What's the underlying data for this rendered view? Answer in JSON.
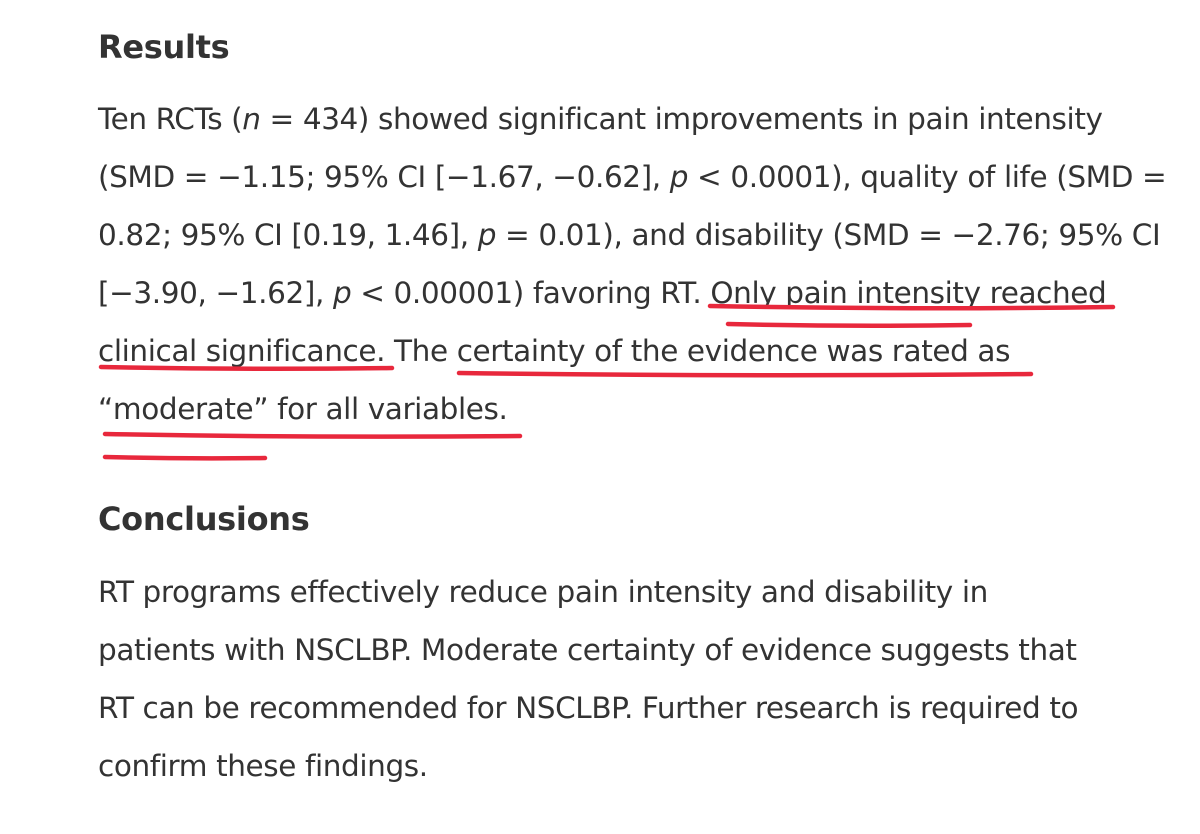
{
  "results": {
    "heading": "Results",
    "line1": {
      "a": "Ten RCTs (",
      "n": "n",
      "b": " = 434) showed significant improvements in pain intensity"
    },
    "line2": {
      "a": "(SMD = −1.15; 95% CI [−1.67, −0.62], ",
      "p": "p",
      "b": " < 0.0001), quality of life (SMD ="
    },
    "line3": {
      "a": "0.82; 95% CI [0.19, 1.46], ",
      "p": "p",
      "b": " = 0.01), and disability (SMD = −2.76; 95% CI"
    },
    "line4": {
      "a": "[−3.90, −1.62], ",
      "p": "p",
      "b": " < 0.00001) favoring RT. Only pain intensity reached"
    },
    "line5": "clinical significance. The certainty of the evidence was rated as",
    "line6": "“moderate” for all variables."
  },
  "conclusions": {
    "heading": "Conclusions",
    "line1": "RT programs effectively reduce pain intensity and disability in",
    "line2": "patients with NSCLBP. Moderate certainty of evidence suggests that",
    "line3": "RT can be recommended for NSCLBP. Further research is required to",
    "line4": "confirm these findings."
  },
  "annotation": {
    "color": "#e8283c"
  }
}
